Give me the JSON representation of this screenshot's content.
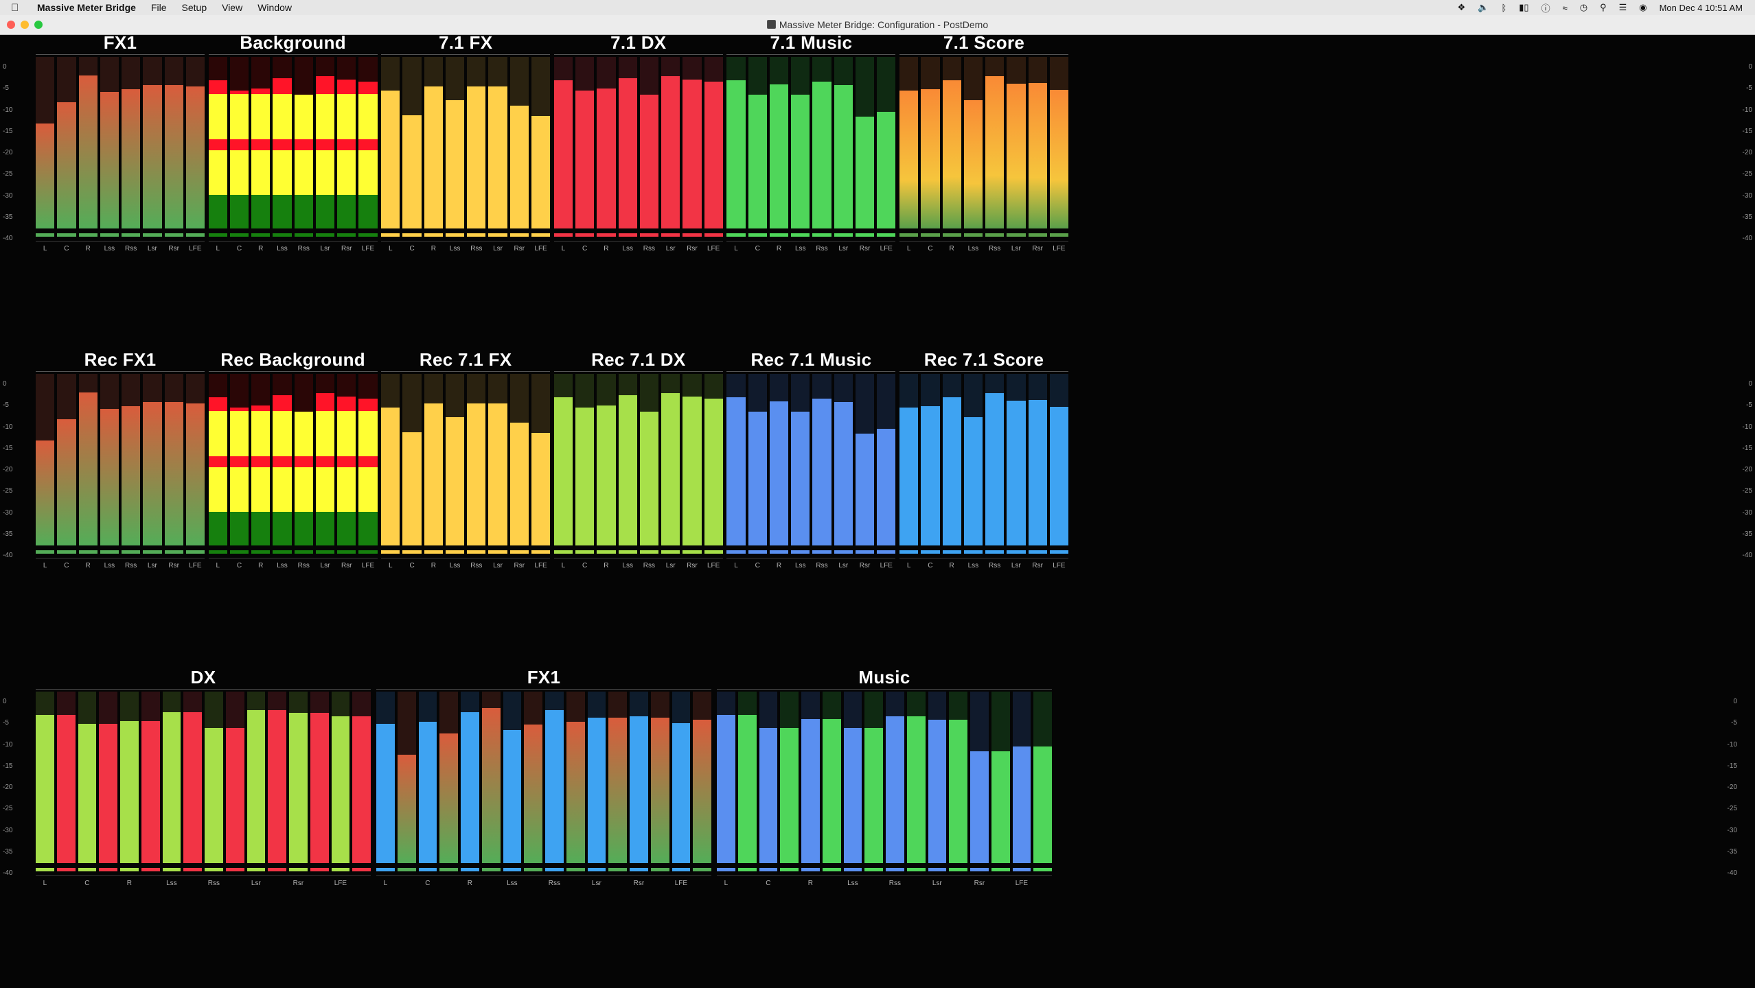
{
  "menubar": {
    "app_name": "Massive Meter Bridge",
    "menus": [
      "File",
      "Setup",
      "View",
      "Window"
    ],
    "clock": "Mon Dec 4  10:51 AM"
  },
  "window": {
    "title": "Massive Meter Bridge: Configuration - PostDemo"
  },
  "scale_ticks": [
    "0",
    "-5",
    "-10",
    "-15",
    "-20",
    "-25",
    "-30",
    "-35",
    "-40"
  ],
  "colors": {
    "fx_grad_top": "#d95c3c",
    "fx_grad_bottom": "#54ad58",
    "yellow_fx": "#ffd04a",
    "red": "#f23445",
    "green": "#4fd65a",
    "orange_top": "#f98a35",
    "orange_mid": "#f6c53c",
    "orange_bot": "#5aa04a",
    "lime": "#a7e04a",
    "blue_music": "#5a8ff0",
    "blue_score": "#3ea3f2",
    "bg_red": "#ff1428",
    "bg_yellow": "#ffff33",
    "bg_green": "#16800e"
  },
  "meters_row1": [
    {
      "title": "FX1",
      "style": "fxgrad",
      "channels": [
        "L",
        "C",
        "R",
        "Lss",
        "Rss",
        "Lsr",
        "Rsr",
        "LFE"
      ],
      "levels": [
        -15.5,
        -10.5,
        -4.3,
        -8.2,
        -7.5,
        -6.5,
        -6.5,
        -6.8
      ]
    },
    {
      "title": "Background",
      "style": "background",
      "channels": [
        "L",
        "C",
        "R",
        "Lss",
        "Rss",
        "Lsr",
        "Rsr",
        "LFE"
      ],
      "levels": [
        -5.5,
        -7.8,
        -7.3,
        -5.0,
        -8.8,
        -4.5,
        -5.2,
        -5.8
      ]
    },
    {
      "title": "7.1 FX",
      "style": "yellowfx",
      "channels": [
        "L",
        "C",
        "R",
        "Lss",
        "Rss",
        "Lsr",
        "Rsr",
        "LFE"
      ],
      "levels": [
        -7.8,
        -13.6,
        -6.9,
        -10.1,
        -6.9,
        -6.9,
        -11.3,
        -13.8
      ]
    },
    {
      "title": "7.1 DX",
      "style": "red",
      "channels": [
        "L",
        "C",
        "R",
        "Lss",
        "Rss",
        "Lsr",
        "Rsr",
        "LFE"
      ],
      "levels": [
        -5.5,
        -7.8,
        -7.3,
        -5.0,
        -8.8,
        -4.5,
        -5.2,
        -5.8
      ]
    },
    {
      "title": "7.1 Music",
      "style": "green",
      "channels": [
        "L",
        "C",
        "R",
        "Lss",
        "Rss",
        "Lsr",
        "Rsr",
        "LFE"
      ],
      "levels": [
        -5.5,
        -8.8,
        -6.4,
        -8.8,
        -5.7,
        -6.5,
        -13.9,
        -12.8
      ]
    },
    {
      "title": "7.1 Score",
      "style": "orange",
      "channels": [
        "L",
        "C",
        "R",
        "Lss",
        "Rss",
        "Lsr",
        "Rsr",
        "LFE"
      ],
      "levels": [
        -7.8,
        -7.5,
        -5.4,
        -10.1,
        -4.5,
        -6.2,
        -6.0,
        -7.6
      ]
    }
  ],
  "meters_row2": [
    {
      "title": "Rec FX1",
      "style": "fxgrad",
      "channels": [
        "L",
        "C",
        "R",
        "Lss",
        "Rss",
        "Lsr",
        "Rsr",
        "LFE"
      ],
      "levels": [
        -15.5,
        -10.5,
        -4.3,
        -8.2,
        -7.5,
        -6.5,
        -6.5,
        -6.8
      ]
    },
    {
      "title": "Rec Background",
      "style": "background",
      "channels": [
        "L",
        "C",
        "R",
        "Lss",
        "Rss",
        "Lsr",
        "Rsr",
        "LFE"
      ],
      "levels": [
        -5.5,
        -7.8,
        -7.3,
        -5.0,
        -8.8,
        -4.5,
        -5.2,
        -5.8
      ]
    },
    {
      "title": "Rec 7.1 FX",
      "style": "yellowfx",
      "channels": [
        "L",
        "C",
        "R",
        "Lss",
        "Rss",
        "Lsr",
        "Rsr",
        "LFE"
      ],
      "levels": [
        -7.8,
        -13.6,
        -6.9,
        -10.1,
        -6.9,
        -6.9,
        -11.3,
        -13.8
      ]
    },
    {
      "title": "Rec 7.1 DX",
      "style": "lime",
      "channels": [
        "L",
        "C",
        "R",
        "Lss",
        "Rss",
        "Lsr",
        "Rsr",
        "LFE"
      ],
      "levels": [
        -5.5,
        -7.8,
        -7.3,
        -5.0,
        -8.8,
        -4.5,
        -5.2,
        -5.8
      ]
    },
    {
      "title": "Rec 7.1 Music",
      "style": "bluemusic",
      "channels": [
        "L",
        "C",
        "R",
        "Lss",
        "Rss",
        "Lsr",
        "Rsr",
        "LFE"
      ],
      "levels": [
        -5.5,
        -8.8,
        -6.4,
        -8.8,
        -5.7,
        -6.5,
        -13.9,
        -12.8
      ]
    },
    {
      "title": "Rec 7.1 Score",
      "style": "bluescore",
      "channels": [
        "L",
        "C",
        "R",
        "Lss",
        "Rss",
        "Lsr",
        "Rsr",
        "LFE"
      ],
      "levels": [
        -7.8,
        -7.5,
        -5.4,
        -10.1,
        -4.5,
        -6.2,
        -6.0,
        -7.6
      ]
    }
  ],
  "meters_row3": [
    {
      "title": "DX",
      "styles": [
        "lime",
        "red"
      ],
      "channels": [
        "L",
        "C",
        "R",
        "Lss",
        "Rss",
        "Lsr",
        "Rsr",
        "LFE"
      ],
      "levels": [
        -5.5,
        -5.5,
        -7.5,
        -7.5,
        -6.8,
        -6.8,
        -4.8,
        -4.8,
        -8.5,
        -8.5,
        -4.3,
        -4.3,
        -5.0,
        -5.0,
        -5.7,
        -5.7
      ]
    },
    {
      "title": "FX1",
      "styles": [
        "bluescore",
        "fxgrad"
      ],
      "channels": [
        "L",
        "C",
        "R",
        "Lss",
        "Rss",
        "Lsr",
        "Rsr",
        "LFE"
      ],
      "levels": [
        -7.5,
        -14.7,
        -7.0,
        -9.8,
        -4.8,
        -3.8,
        -9.0,
        -7.6,
        -4.3,
        -7.1,
        -6.0,
        -6.0,
        -5.8,
        -6.0,
        -7.3,
        -6.5
      ]
    },
    {
      "title": "Music",
      "styles": [
        "bluemusic",
        "green"
      ],
      "channels": [
        "L",
        "C",
        "R",
        "Lss",
        "Rss",
        "Lsr",
        "Rsr",
        "LFE"
      ],
      "levels": [
        -5.5,
        -5.5,
        -8.5,
        -8.5,
        -6.4,
        -6.4,
        -8.5,
        -8.5,
        -5.7,
        -5.7,
        -6.5,
        -6.5,
        -13.9,
        -13.9,
        -12.8,
        -12.8
      ]
    }
  ]
}
